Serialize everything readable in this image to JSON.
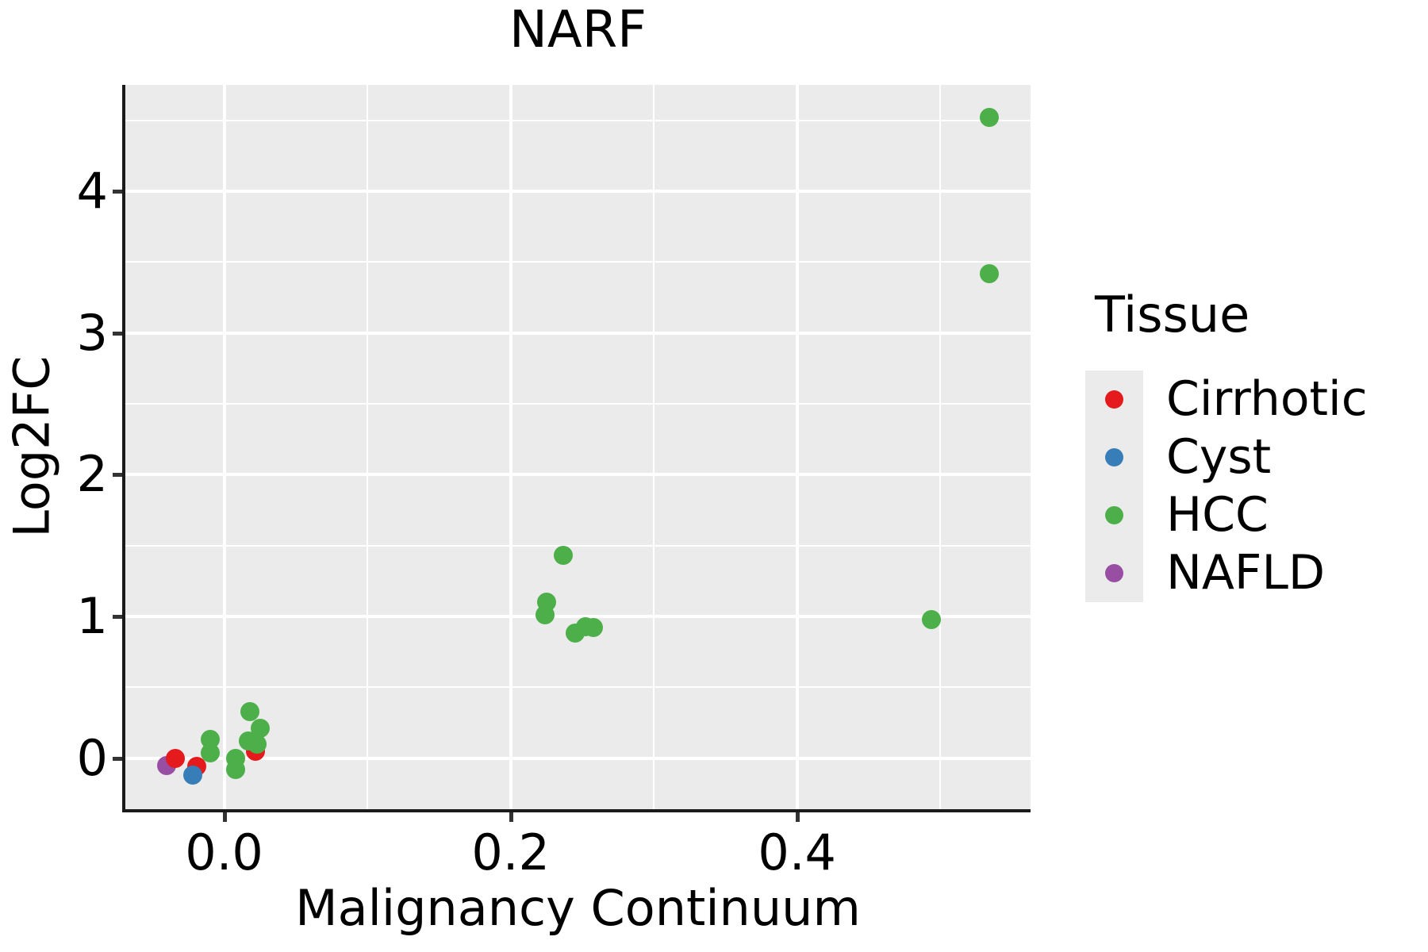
{
  "title": "NARF",
  "axis": {
    "x_label": "Malignancy Continuum",
    "y_label": "Log2FC"
  },
  "legend": {
    "title": "Tissue",
    "entries": [
      {
        "label": "Cirrhotic",
        "color": "#E41A1C"
      },
      {
        "label": "Cyst",
        "color": "#377EB8"
      },
      {
        "label": "HCC",
        "color": "#4DAF4A"
      },
      {
        "label": "NAFLD",
        "color": "#984EA3"
      }
    ]
  },
  "colors": {
    "panel_background": "#EBEBEB",
    "gridline": "#FFFFFF",
    "axis_line": "#1A1A1A",
    "tick": "#333333",
    "cirrhotic": "#E41A1C",
    "cyst": "#377EB8",
    "hcc": "#4DAF4A",
    "nafld": "#984EA3"
  },
  "chart_data": {
    "type": "scatter",
    "title": "NARF",
    "xlabel": "Malignancy Continuum",
    "ylabel": "Log2FC",
    "xlim": [
      -0.069,
      0.563
    ],
    "ylim": [
      -0.36,
      4.75
    ],
    "grid": "on",
    "legend_position": "right",
    "x_ticks": [
      {
        "value": 0.0,
        "label": "0.0"
      },
      {
        "value": 0.2,
        "label": "0.2"
      },
      {
        "value": 0.4,
        "label": "0.4"
      }
    ],
    "y_ticks": [
      {
        "value": 0,
        "label": "0"
      },
      {
        "value": 1,
        "label": "1"
      },
      {
        "value": 2,
        "label": "2"
      },
      {
        "value": 3,
        "label": "3"
      },
      {
        "value": 4,
        "label": "4"
      }
    ],
    "x_minor_gridlines": [
      0.1,
      0.3,
      0.5
    ],
    "y_minor_gridlines": [
      0.5,
      1.5,
      2.5,
      3.5,
      4.5
    ],
    "series": [
      {
        "name": "NAFLD",
        "color": "#984EA3",
        "points": [
          [
            -0.04,
            -0.05
          ]
        ]
      },
      {
        "name": "Cirrhotic",
        "color": "#E41A1C",
        "points": [
          [
            -0.034,
            0.0
          ],
          [
            -0.019,
            -0.06
          ],
          [
            0.022,
            0.05
          ]
        ]
      },
      {
        "name": "Cyst",
        "color": "#377EB8",
        "points": [
          [
            -0.022,
            -0.12
          ]
        ]
      },
      {
        "name": "HCC",
        "color": "#4DAF4A",
        "points": [
          [
            -0.01,
            0.13
          ],
          [
            -0.01,
            0.04
          ],
          [
            0.008,
            0.0
          ],
          [
            0.008,
            -0.08
          ],
          [
            0.018,
            0.33
          ],
          [
            0.025,
            0.21
          ],
          [
            0.017,
            0.12
          ],
          [
            0.023,
            0.1
          ],
          [
            0.237,
            1.43
          ],
          [
            0.225,
            1.1
          ],
          [
            0.224,
            1.01
          ],
          [
            0.245,
            0.88
          ],
          [
            0.252,
            0.93
          ],
          [
            0.258,
            0.92
          ],
          [
            0.494,
            0.98
          ],
          [
            0.534,
            4.52
          ],
          [
            0.534,
            3.42
          ]
        ]
      }
    ]
  }
}
